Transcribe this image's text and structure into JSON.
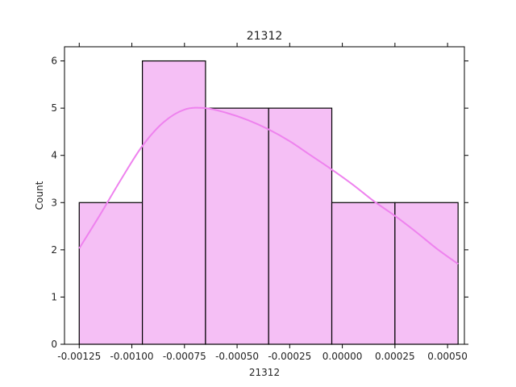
{
  "chart_data": {
    "type": "bar",
    "title": "21312",
    "xlabel": "21312",
    "ylabel": "Count",
    "bin_edges": [
      -0.00125,
      -0.00095,
      -0.00065,
      -0.00035,
      -5e-05,
      0.00025,
      0.00055
    ],
    "counts": [
      3,
      6,
      5,
      5,
      3,
      3
    ],
    "xlim": [
      -0.00132,
      0.00058
    ],
    "ylim": [
      0,
      6.3
    ],
    "xticks": [
      -0.00125,
      -0.001,
      -0.00075,
      -0.0005,
      -0.00025,
      0,
      0.00025,
      0.0005
    ],
    "xtick_labels": [
      "-0.00125",
      "-0.00100",
      "-0.00075",
      "-0.00050",
      "-0.00025",
      "0.00000",
      "0.00025",
      "0.00050"
    ],
    "yticks": [
      0,
      1,
      2,
      3,
      4,
      5,
      6
    ],
    "ytick_labels": [
      "0",
      "1",
      "2",
      "3",
      "4",
      "5",
      "6"
    ],
    "kde": {
      "x": [
        -0.00125,
        -0.00115,
        -0.00105,
        -0.00095,
        -0.00085,
        -0.00075,
        -0.00065,
        -0.00055,
        -0.00045,
        -0.00035,
        -0.00025,
        -0.00015,
        -5e-05,
        5e-05,
        0.00015,
        0.00025,
        0.00035,
        0.00045,
        0.00055
      ],
      "y": [
        2.03,
        2.75,
        3.5,
        4.2,
        4.7,
        4.97,
        5.0,
        4.9,
        4.75,
        4.55,
        4.3,
        4.0,
        3.7,
        3.38,
        3.03,
        2.72,
        2.38,
        2.02,
        1.7
      ]
    },
    "grid": false,
    "legend": "none",
    "colors": {
      "bar_fill": "#f5bff5",
      "bar_edge": "#000000",
      "kde_line": "#ee82ee",
      "axis": "#000000"
    }
  }
}
